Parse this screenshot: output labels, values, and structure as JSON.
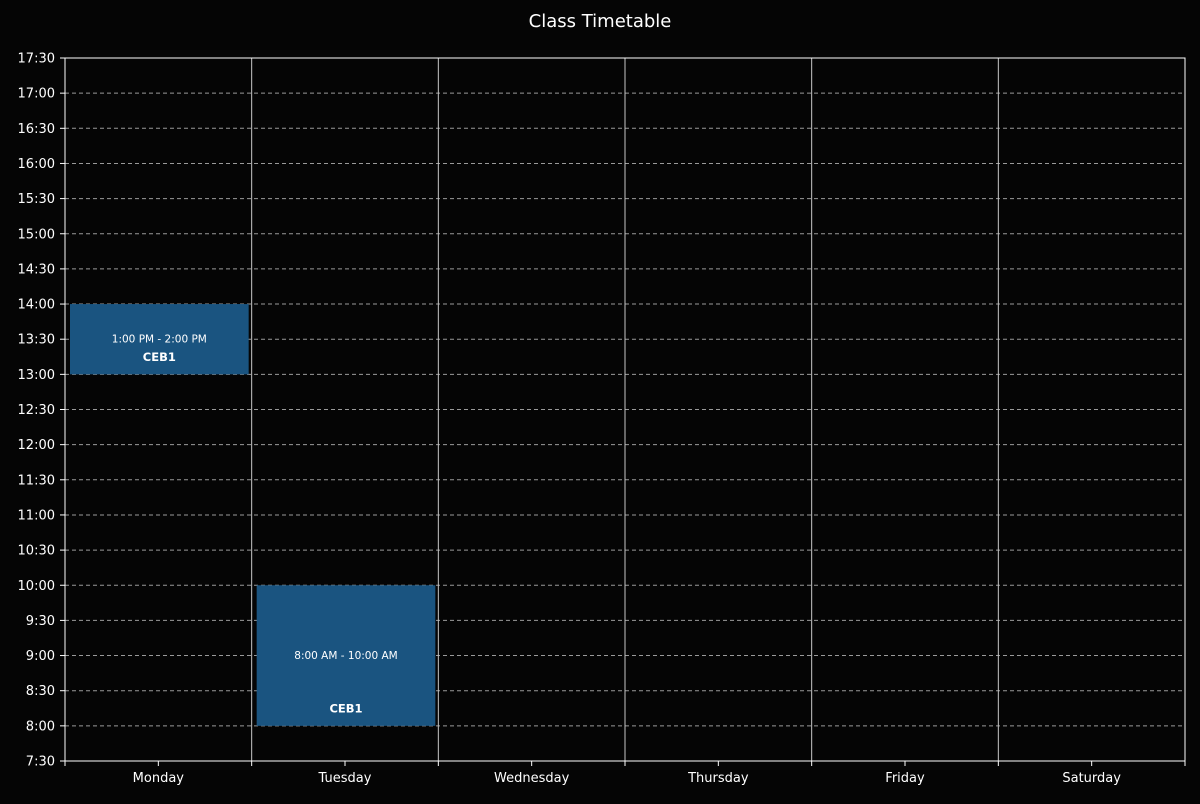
{
  "chart_data": {
    "type": "timetable",
    "title": "Class Timetable",
    "days": [
      "Monday",
      "Tuesday",
      "Wednesday",
      "Thursday",
      "Friday",
      "Saturday"
    ],
    "time_ticks": [
      "7:30",
      "8:00",
      "8:30",
      "9:00",
      "9:30",
      "10:00",
      "10:30",
      "11:00",
      "11:30",
      "12:00",
      "12:30",
      "13:00",
      "13:30",
      "14:00",
      "14:30",
      "15:00",
      "15:30",
      "16:00",
      "16:30",
      "17:00",
      "17:30"
    ],
    "time_range": [
      "7:30",
      "17:30"
    ],
    "y_inverted": true,
    "grid": "horizontal dashed",
    "events": [
      {
        "day": "Monday",
        "start": "13:00",
        "end": "14:00",
        "time_label": "1:00 PM - 2:00 PM",
        "course": "CEB1"
      },
      {
        "day": "Tuesday",
        "start": "8:00",
        "end": "10:00",
        "time_label": "8:00 AM - 10:00 AM",
        "course": "CEB1"
      }
    ]
  },
  "colors": {
    "background": "#050505",
    "axis": "#ffffff",
    "grid": "#9a9a9a",
    "event_fill": "#1a5480",
    "text": "#ffffff"
  }
}
